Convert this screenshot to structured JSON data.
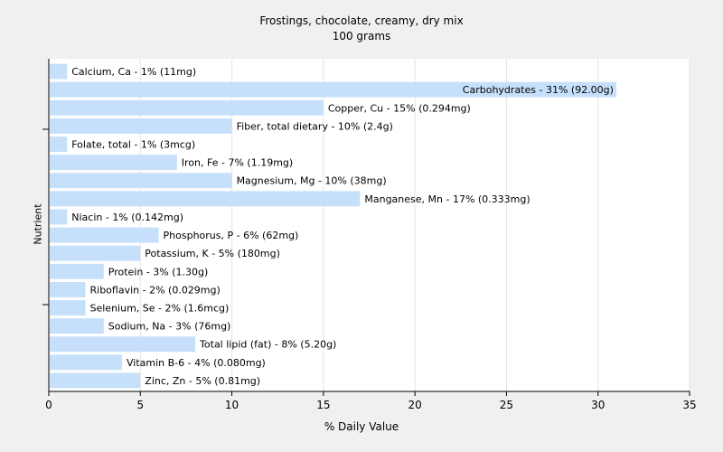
{
  "chart_data": {
    "type": "bar",
    "orientation": "horizontal",
    "title": "Frostings, chocolate, creamy, dry mix",
    "subtitle": "100 grams",
    "xlabel": "% Daily Value",
    "ylabel": "Nutrient",
    "xlim": [
      0,
      35
    ],
    "xticks": [
      0,
      5,
      10,
      15,
      20,
      25,
      30,
      35
    ],
    "grid": true,
    "bar_color": "#c6e0fb",
    "categories": [
      "Calcium, Ca",
      "Carbohydrates",
      "Copper, Cu",
      "Fiber, total dietary",
      "Folate, total",
      "Iron, Fe",
      "Magnesium, Mg",
      "Manganese, Mn",
      "Niacin",
      "Phosphorus, P",
      "Potassium, K",
      "Protein",
      "Riboflavin",
      "Selenium, Se",
      "Sodium, Na",
      "Total lipid (fat)",
      "Vitamin B-6",
      "Zinc, Zn"
    ],
    "values": [
      1,
      31,
      15,
      10,
      1,
      7,
      10,
      17,
      1,
      6,
      5,
      3,
      2,
      2,
      3,
      8,
      4,
      5
    ],
    "labels": [
      "Calcium, Ca - 1% (11mg)",
      "Carbohydrates - 31% (92.00g)",
      "Copper, Cu - 15% (0.294mg)",
      "Fiber, total dietary - 10% (2.4g)",
      "Folate, total - 1% (3mcg)",
      "Iron, Fe - 7% (1.19mg)",
      "Magnesium, Mg - 10% (38mg)",
      "Manganese, Mn - 17% (0.333mg)",
      "Niacin - 1% (0.142mg)",
      "Phosphorus, P - 6% (62mg)",
      "Potassium, K - 5% (180mg)",
      "Protein - 3% (1.30g)",
      "Riboflavin - 2% (0.029mg)",
      "Selenium, Se - 2% (1.6mcg)",
      "Sodium, Na - 3% (76mg)",
      "Total lipid (fat) - 8% (5.20g)",
      "Vitamin B-6 - 4% (0.080mg)",
      "Zinc, Zn - 5% (0.81mg)"
    ]
  }
}
